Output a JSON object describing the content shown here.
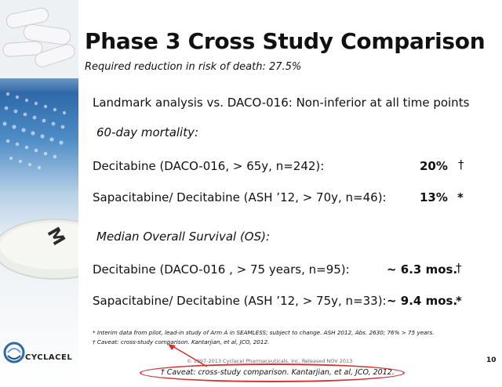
{
  "slide": {
    "title": "Phase 3 Cross Study Comparison",
    "subtitle": "Required reduction in risk of death: 27.5%",
    "landmark": "Landmark analysis vs. DACO-016: Non-inferior at all time points",
    "section1": {
      "heading": "60-day mortality:",
      "rows": [
        {
          "label": "Decitabine (DACO-016, > 65y, n=242):",
          "value": "20%",
          "mark": "†"
        },
        {
          "label": "Sapacitabine/ Decitabine (ASH ’12, > 70y, n=46):",
          "value": "13%",
          "mark": "*"
        }
      ]
    },
    "section2": {
      "heading": "Median Overall Survival (OS):",
      "rows": [
        {
          "label": "Decitabine (DACO-016 , > 75 years, n=95):",
          "value": "~ 6.3 mos.",
          "mark": "†"
        },
        {
          "label": "Sapacitabine/ Decitabine (ASH ’12, > 75y, n=33):",
          "value": "~ 9.4 mos.",
          "mark": "*"
        }
      ]
    },
    "footnotes": [
      "* Interim data from pilot, lead-in study of Arm A in SEAMLESS; subject to change. ASH 2012, Abs. 2630; 76% > 75 years.",
      "† Caveat: cross-study comparison. Kantarjian, et al, JCO, 2012."
    ],
    "copyright": "© 1997-2013 Cyclacel Pharmaceuticals, Inc.  Released NOV 2013",
    "page_number": "10",
    "logo_text": "CYCLACEL",
    "callout": "† Caveat: cross-study comparison. Kantarjian, et al, JCO, 2012.",
    "colors": {
      "accent_blue": "#2f69a8",
      "callout_red": "#d9302f"
    }
  }
}
